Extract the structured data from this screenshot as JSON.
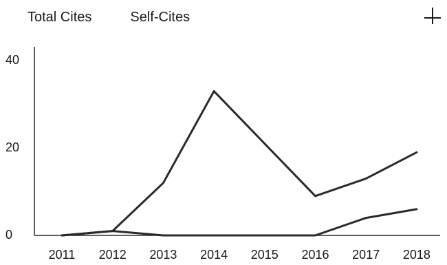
{
  "tabs": [
    {
      "label": "Total Cites"
    },
    {
      "label": "Self-Cites"
    }
  ],
  "add_icon": "plus-icon",
  "colors": {
    "line": "#2a2a2a",
    "axis": "#2a2a2a",
    "text": "#1a1a1a",
    "background": "#ffffff"
  },
  "chart_data": {
    "type": "line",
    "x": [
      "2011",
      "2012",
      "2013",
      "2014",
      "2015",
      "2016",
      "2017",
      "2018"
    ],
    "series": [
      {
        "values": [
          0,
          1,
          12,
          33,
          21,
          9,
          13,
          19
        ]
      },
      {
        "values": [
          0,
          1,
          0,
          0,
          0,
          0,
          4,
          6
        ]
      }
    ],
    "yticks": [
      0,
      20,
      40
    ],
    "ylim": [
      0,
      42
    ],
    "grid": false,
    "title": "",
    "xlabel": "",
    "ylabel": ""
  }
}
